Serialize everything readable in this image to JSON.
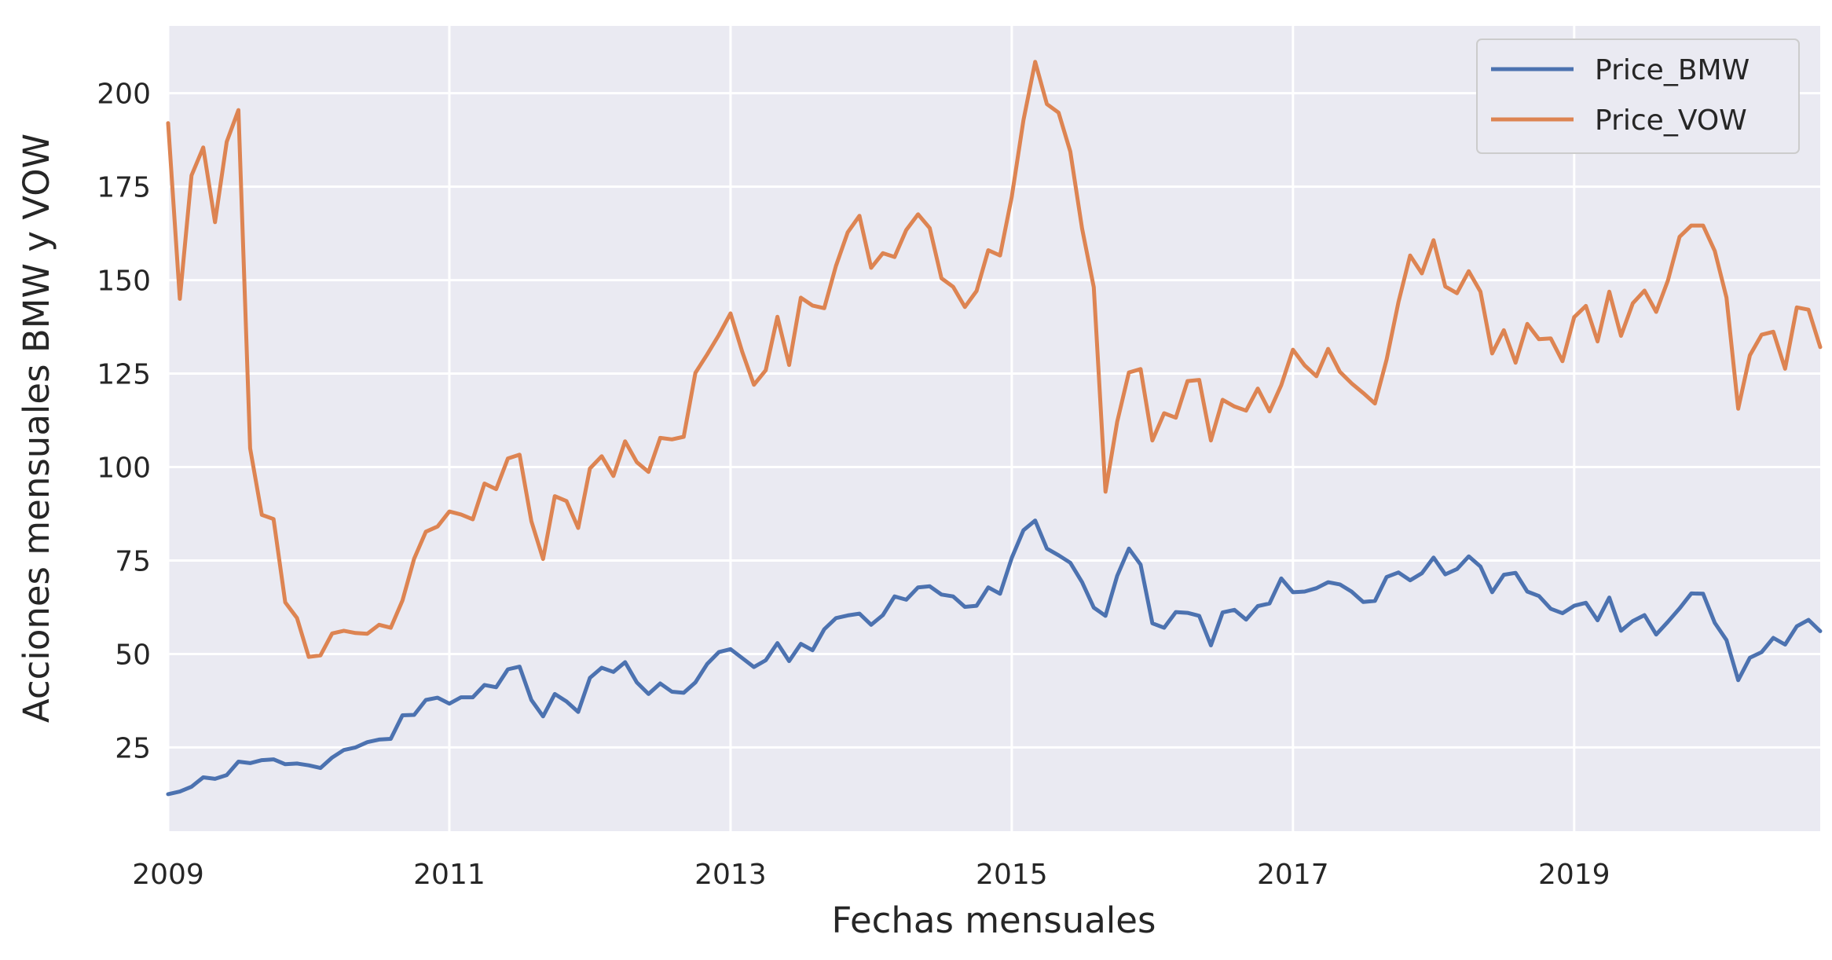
{
  "chart_data": {
    "type": "line",
    "title": "",
    "xlabel": "Fechas mensuales",
    "ylabel": "Acciones mensuales BMW y VOW",
    "xlim": [
      "2009-01",
      "2020-10"
    ],
    "ylim": [
      2.6,
      218
    ],
    "x_ticks": [
      "2009",
      "2011",
      "2013",
      "2015",
      "2017",
      "2019"
    ],
    "y_ticks": [
      25,
      50,
      75,
      100,
      125,
      150,
      175,
      200
    ],
    "grid": true,
    "legend_position": "top-right",
    "x": [
      "2009-01",
      "2009-02",
      "2009-03",
      "2009-04",
      "2009-05",
      "2009-06",
      "2009-07",
      "2009-08",
      "2009-09",
      "2009-10",
      "2009-11",
      "2009-12",
      "2010-01",
      "2010-02",
      "2010-03",
      "2010-04",
      "2010-05",
      "2010-06",
      "2010-07",
      "2010-08",
      "2010-09",
      "2010-10",
      "2010-11",
      "2010-12",
      "2011-01",
      "2011-02",
      "2011-03",
      "2011-04",
      "2011-05",
      "2011-06",
      "2011-07",
      "2011-08",
      "2011-09",
      "2011-10",
      "2011-11",
      "2011-12",
      "2012-01",
      "2012-02",
      "2012-03",
      "2012-04",
      "2012-05",
      "2012-06",
      "2012-07",
      "2012-08",
      "2012-09",
      "2012-10",
      "2012-11",
      "2012-12",
      "2013-01",
      "2013-02",
      "2013-03",
      "2013-04",
      "2013-05",
      "2013-06",
      "2013-07",
      "2013-08",
      "2013-09",
      "2013-10",
      "2013-11",
      "2013-12",
      "2014-01",
      "2014-02",
      "2014-03",
      "2014-04",
      "2014-05",
      "2014-06",
      "2014-07",
      "2014-08",
      "2014-09",
      "2014-10",
      "2014-11",
      "2014-12",
      "2015-01",
      "2015-02",
      "2015-03",
      "2015-04",
      "2015-05",
      "2015-06",
      "2015-07",
      "2015-08",
      "2015-09",
      "2015-10",
      "2015-11",
      "2015-12",
      "2016-01",
      "2016-02",
      "2016-03",
      "2016-04",
      "2016-05",
      "2016-06",
      "2016-07",
      "2016-08",
      "2016-09",
      "2016-10",
      "2016-11",
      "2016-12",
      "2017-01",
      "2017-02",
      "2017-03",
      "2017-04",
      "2017-05",
      "2017-06",
      "2017-07",
      "2017-08",
      "2017-09",
      "2017-10",
      "2017-11",
      "2017-12",
      "2018-01",
      "2018-02",
      "2018-03",
      "2018-04",
      "2018-05",
      "2018-06",
      "2018-07",
      "2018-08",
      "2018-09",
      "2018-10",
      "2018-11",
      "2018-12",
      "2019-01",
      "2019-02",
      "2019-03",
      "2019-04",
      "2019-05",
      "2019-06",
      "2019-07",
      "2019-08",
      "2019-09",
      "2019-10",
      "2019-11",
      "2019-12",
      "2020-01",
      "2020-02",
      "2020-03",
      "2020-04",
      "2020-05",
      "2020-06",
      "2020-07",
      "2020-08",
      "2020-09",
      "2020-10"
    ],
    "series": [
      {
        "name": "Price_BMW",
        "color": "#4c72b0",
        "values": [
          12.5,
          13.2,
          14.5,
          17.0,
          16.6,
          17.6,
          21.2,
          20.8,
          21.6,
          21.8,
          20.5,
          20.7,
          20.2,
          19.5,
          22.3,
          24.3,
          25.0,
          26.4,
          27.1,
          27.3,
          33.6,
          33.7,
          37.7,
          38.3,
          36.7,
          38.4,
          38.4,
          41.7,
          41.1,
          45.9,
          46.6,
          37.7,
          33.3,
          39.3,
          37.3,
          34.5,
          43.6,
          46.3,
          45.2,
          47.8,
          42.4,
          39.3,
          42.1,
          39.9,
          39.6,
          42.4,
          47.3,
          50.5,
          51.3,
          48.9,
          46.5,
          48.3,
          52.9,
          48.1,
          52.7,
          51.0,
          56.6,
          59.6,
          60.3,
          60.8,
          57.8,
          60.4,
          65.4,
          64.5,
          67.8,
          68.1,
          65.9,
          65.4,
          62.6,
          62.9,
          67.8,
          66.1,
          75.7,
          83.1,
          85.7,
          78.2,
          76.4,
          74.4,
          69.2,
          62.4,
          60.2,
          70.9,
          78.2,
          73.9,
          58.2,
          57.0,
          61.2,
          61.0,
          60.2,
          52.3,
          61.1,
          61.8,
          59.2,
          62.8,
          63.5,
          70.2,
          66.5,
          66.7,
          67.6,
          69.2,
          68.6,
          66.7,
          63.9,
          64.2,
          70.6,
          71.8,
          69.7,
          71.6,
          75.8,
          71.3,
          72.7,
          76.1,
          73.4,
          66.5,
          71.2,
          71.7,
          66.7,
          65.5,
          62.1,
          60.9,
          62.9,
          63.7,
          59.0,
          65.1,
          56.2,
          58.8,
          60.4,
          55.2,
          58.6,
          62.2,
          66.2,
          66.1,
          58.3,
          53.7,
          43.0,
          49.0,
          50.5,
          54.3,
          52.5,
          57.4,
          59.1,
          56.1
        ]
      },
      {
        "name": "Price_VOW",
        "color": "#dd8452",
        "values": [
          192.0,
          145.0,
          178.0,
          185.5,
          165.5,
          187.0,
          195.5,
          105.0,
          87.2,
          86.1,
          63.8,
          59.6,
          49.2,
          49.6,
          55.5,
          56.2,
          55.6,
          55.4,
          57.8,
          57.0,
          64.3,
          75.5,
          82.7,
          84.1,
          88.1,
          87.3,
          86.0,
          95.6,
          94.1,
          102.3,
          103.3,
          85.5,
          75.4,
          92.2,
          90.9,
          83.7,
          99.6,
          102.9,
          97.6,
          106.9,
          101.3,
          98.7,
          107.8,
          107.4,
          108.1,
          125.2,
          130.1,
          135.3,
          141.1,
          130.8,
          122.0,
          125.9,
          140.2,
          127.3,
          145.3,
          143.2,
          142.5,
          153.8,
          162.8,
          167.2,
          153.3,
          157.2,
          156.2,
          163.4,
          167.6,
          163.9,
          150.5,
          148.2,
          142.8,
          147.1,
          158.0,
          156.6,
          172.3,
          192.8,
          208.4,
          197.1,
          194.8,
          184.4,
          163.8,
          148.1,
          93.4,
          112.1,
          125.3,
          126.2,
          107.1,
          114.4,
          113.2,
          123.0,
          123.3,
          107.1,
          118.0,
          116.2,
          115.1,
          121.0,
          114.9,
          121.9,
          131.4,
          127.2,
          124.3,
          131.6,
          125.5,
          122.4,
          119.8,
          117.0,
          128.8,
          144.1,
          156.6,
          151.8,
          160.7,
          148.3,
          146.5,
          152.4,
          146.9,
          130.4,
          136.6,
          127.9,
          138.3,
          134.2,
          134.4,
          128.3,
          140.1,
          143.1,
          133.6,
          146.9,
          135.1,
          143.8,
          147.2,
          141.5,
          149.9,
          161.6,
          164.6,
          164.6,
          157.8,
          145.3,
          115.6,
          129.9,
          135.4,
          136.2,
          126.3,
          142.7,
          142.1,
          132.1
        ]
      }
    ]
  }
}
